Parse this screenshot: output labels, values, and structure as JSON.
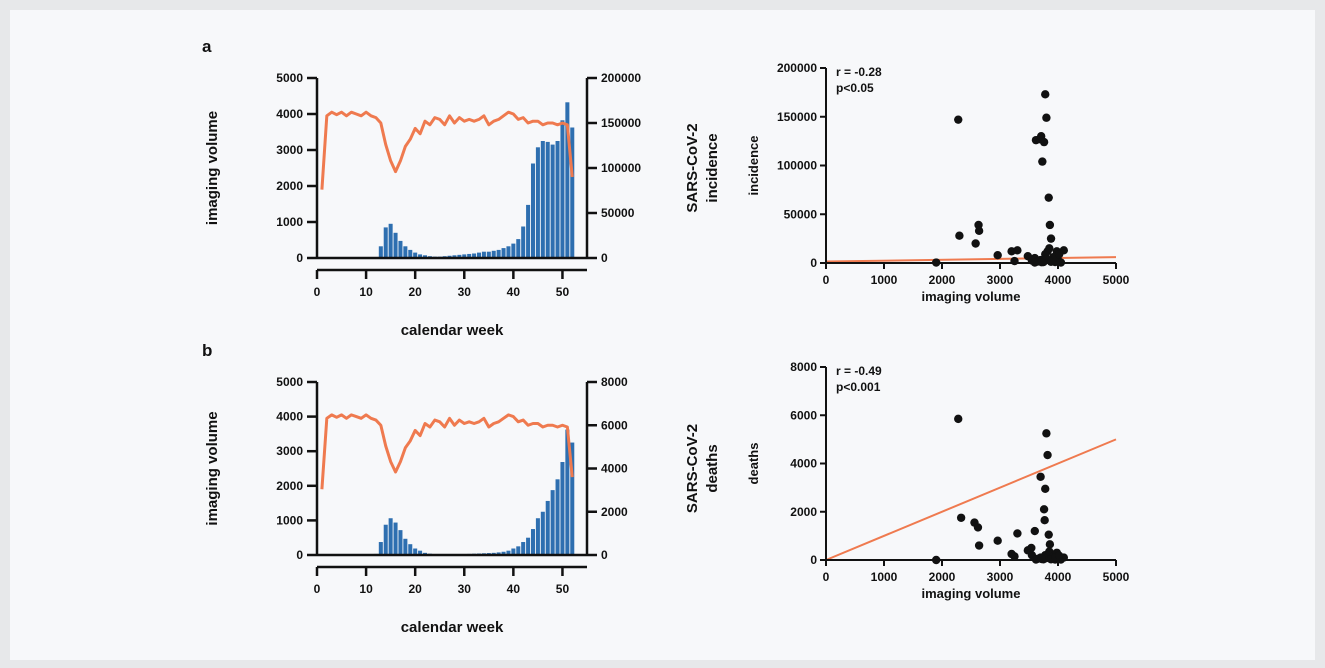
{
  "figure": {
    "panel_a_label": "a",
    "panel_b_label": "b"
  },
  "colors": {
    "bar": "#2e6fb0",
    "line": "#ef7a4f",
    "point": "#111111",
    "axis": "#111111",
    "background": "#f7f8fa"
  },
  "chart_data": [
    {
      "id": "a-left",
      "type": "bar+line",
      "xlabel": "calendar week",
      "ylabel": "imaging volume",
      "ylabel2": [
        "SARS-CoV-2",
        "incidence"
      ],
      "xticks": [
        0,
        10,
        20,
        30,
        40,
        50
      ],
      "yticks": [
        0,
        1000,
        2000,
        3000,
        4000,
        5000
      ],
      "y2ticks": [
        0,
        50000,
        100000,
        150000,
        200000
      ],
      "xlim": [
        0,
        55
      ],
      "ylim": [
        0,
        5000
      ],
      "y2lim": [
        0,
        200000
      ],
      "line_series": {
        "axis": "left",
        "x": [
          1,
          2,
          3,
          4,
          5,
          6,
          7,
          8,
          9,
          10,
          11,
          12,
          13,
          14,
          15,
          16,
          17,
          18,
          19,
          20,
          21,
          22,
          23,
          24,
          25,
          26,
          27,
          28,
          29,
          30,
          31,
          32,
          33,
          34,
          35,
          36,
          37,
          38,
          39,
          40,
          41,
          42,
          43,
          44,
          45,
          46,
          47,
          48,
          49,
          50,
          51,
          52
        ],
        "values": [
          1900,
          3950,
          4050,
          3980,
          4050,
          3950,
          4050,
          4000,
          3950,
          4050,
          3950,
          3900,
          3750,
          3150,
          2700,
          2400,
          2700,
          3100,
          3300,
          3600,
          3450,
          3800,
          3700,
          3900,
          3850,
          3700,
          3950,
          3750,
          3900,
          3800,
          3850,
          3800,
          3850,
          3950,
          3700,
          3800,
          3850,
          3950,
          4050,
          4000,
          3850,
          3900,
          3750,
          3800,
          3800,
          3700,
          3750,
          3750,
          3700,
          3750,
          3700,
          2250
        ]
      },
      "bar_series": {
        "axis": "right",
        "x": [
          1,
          2,
          3,
          4,
          5,
          6,
          7,
          8,
          9,
          10,
          11,
          12,
          13,
          14,
          15,
          16,
          17,
          18,
          19,
          20,
          21,
          22,
          23,
          24,
          25,
          26,
          27,
          28,
          29,
          30,
          31,
          32,
          33,
          34,
          35,
          36,
          37,
          38,
          39,
          40,
          41,
          42,
          43,
          44,
          45,
          46,
          47,
          48,
          49,
          50,
          51,
          52,
          53
        ],
        "values": [
          0,
          0,
          0,
          0,
          0,
          0,
          0,
          0,
          0,
          0,
          0,
          1000,
          13000,
          34000,
          38000,
          28000,
          19000,
          13000,
          9000,
          6000,
          4000,
          3000,
          2000,
          1500,
          1500,
          2000,
          2500,
          3000,
          3500,
          4000,
          4500,
          5000,
          6000,
          7000,
          7000,
          8000,
          9000,
          11000,
          13000,
          16000,
          21000,
          35000,
          59000,
          105000,
          123000,
          130000,
          129000,
          126000,
          130000,
          153000,
          173000,
          145000,
          0
        ]
      }
    },
    {
      "id": "a-right",
      "type": "scatter",
      "xlabel": "imaging volume",
      "ylabel": "incidence",
      "xticks": [
        0,
        1000,
        2000,
        3000,
        4000,
        5000
      ],
      "yticks": [
        0,
        50000,
        100000,
        150000,
        200000
      ],
      "xlim": [
        0,
        5000
      ],
      "ylim": [
        0,
        200000
      ],
      "stats": [
        "r = -0.28",
        "p<0.05"
      ],
      "fit": {
        "x": [
          0,
          5000
        ],
        "y": [
          1500,
          6000
        ]
      },
      "points": [
        [
          1900,
          500
        ],
        [
          2280,
          147000
        ],
        [
          2300,
          28000
        ],
        [
          2580,
          20000
        ],
        [
          2630,
          39000
        ],
        [
          2640,
          33000
        ],
        [
          2960,
          8000
        ],
        [
          3200,
          12000
        ],
        [
          3250,
          2000
        ],
        [
          3300,
          13000
        ],
        [
          3480,
          7000
        ],
        [
          3600,
          5000
        ],
        [
          3620,
          126000
        ],
        [
          3680,
          127000
        ],
        [
          3710,
          130000
        ],
        [
          3730,
          104000
        ],
        [
          3760,
          124000
        ],
        [
          3780,
          173000
        ],
        [
          3800,
          149000
        ],
        [
          3820,
          12000
        ],
        [
          3840,
          67000
        ],
        [
          3860,
          39000
        ],
        [
          3880,
          25000
        ],
        [
          3650,
          1500
        ],
        [
          3700,
          3000
        ],
        [
          3750,
          1000
        ],
        [
          3780,
          9000
        ],
        [
          3800,
          4000
        ],
        [
          3850,
          15000
        ],
        [
          3900,
          2000
        ],
        [
          3920,
          6000
        ],
        [
          3950,
          1000
        ],
        [
          3980,
          12000
        ],
        [
          4000,
          3000
        ],
        [
          4050,
          500
        ],
        [
          4100,
          13000
        ],
        [
          3550,
          2500
        ],
        [
          3600,
          500
        ],
        [
          3720,
          800
        ],
        [
          3880,
          1200
        ],
        [
          3960,
          7000
        ],
        [
          4020,
          9000
        ]
      ]
    },
    {
      "id": "b-left",
      "type": "bar+line",
      "xlabel": "calendar week",
      "ylabel": "imaging volume",
      "ylabel2": [
        "SARS-CoV-2",
        "deaths"
      ],
      "xticks": [
        0,
        10,
        20,
        30,
        40,
        50
      ],
      "yticks": [
        0,
        1000,
        2000,
        3000,
        4000,
        5000
      ],
      "y2ticks": [
        0,
        2000,
        4000,
        6000,
        8000
      ],
      "xlim": [
        0,
        55
      ],
      "ylim": [
        0,
        5000
      ],
      "y2lim": [
        0,
        8000
      ],
      "line_series": {
        "axis": "left",
        "x": [
          1,
          2,
          3,
          4,
          5,
          6,
          7,
          8,
          9,
          10,
          11,
          12,
          13,
          14,
          15,
          16,
          17,
          18,
          19,
          20,
          21,
          22,
          23,
          24,
          25,
          26,
          27,
          28,
          29,
          30,
          31,
          32,
          33,
          34,
          35,
          36,
          37,
          38,
          39,
          40,
          41,
          42,
          43,
          44,
          45,
          46,
          47,
          48,
          49,
          50,
          51,
          52
        ],
        "values": [
          1900,
          3950,
          4050,
          3980,
          4050,
          3950,
          4050,
          4000,
          3950,
          4050,
          3950,
          3900,
          3750,
          3150,
          2700,
          2400,
          2700,
          3100,
          3300,
          3600,
          3450,
          3800,
          3700,
          3900,
          3850,
          3700,
          3950,
          3750,
          3900,
          3800,
          3850,
          3800,
          3850,
          3950,
          3700,
          3800,
          3850,
          3950,
          4050,
          4000,
          3850,
          3900,
          3750,
          3800,
          3800,
          3700,
          3750,
          3750,
          3700,
          3750,
          3700,
          2250
        ]
      },
      "bar_series": {
        "axis": "right",
        "x": [
          1,
          2,
          3,
          4,
          5,
          6,
          7,
          8,
          9,
          10,
          11,
          12,
          13,
          14,
          15,
          16,
          17,
          18,
          19,
          20,
          21,
          22,
          23,
          24,
          25,
          26,
          27,
          28,
          29,
          30,
          31,
          32,
          33,
          34,
          35,
          36,
          37,
          38,
          39,
          40,
          41,
          42,
          43,
          44,
          45,
          46,
          47,
          48,
          49,
          50,
          51,
          52,
          53
        ],
        "values": [
          0,
          0,
          0,
          0,
          0,
          0,
          0,
          0,
          0,
          0,
          0,
          50,
          600,
          1400,
          1700,
          1500,
          1150,
          750,
          500,
          300,
          200,
          100,
          60,
          40,
          30,
          30,
          30,
          30,
          30,
          40,
          50,
          60,
          70,
          80,
          90,
          100,
          120,
          150,
          200,
          300,
          400,
          600,
          800,
          1200,
          1700,
          2000,
          2500,
          3000,
          3500,
          4300,
          5800,
          5200,
          0
        ]
      }
    },
    {
      "id": "b-right",
      "type": "scatter",
      "xlabel": "imaging volume",
      "ylabel": "deaths",
      "xticks": [
        0,
        1000,
        2000,
        3000,
        4000,
        5000
      ],
      "yticks": [
        0,
        2000,
        4000,
        6000,
        8000
      ],
      "xlim": [
        0,
        5000
      ],
      "ylim": [
        0,
        8000
      ],
      "stats": [
        "r = -0.49",
        "p<0.001"
      ],
      "fit": {
        "x": [
          0,
          5000
        ],
        "y": [
          0,
          5000
        ]
      },
      "points": [
        [
          1900,
          0
        ],
        [
          2280,
          5850
        ],
        [
          2330,
          1750
        ],
        [
          2560,
          1550
        ],
        [
          2620,
          1350
        ],
        [
          2640,
          600
        ],
        [
          2960,
          800
        ],
        [
          3200,
          250
        ],
        [
          3250,
          150
        ],
        [
          3300,
          1100
        ],
        [
          3480,
          400
        ],
        [
          3550,
          200
        ],
        [
          3600,
          1200
        ],
        [
          3700,
          3450
        ],
        [
          3760,
          2100
        ],
        [
          3770,
          1650
        ],
        [
          3780,
          2950
        ],
        [
          3800,
          5250
        ],
        [
          3820,
          4350
        ],
        [
          3840,
          1050
        ],
        [
          3860,
          650
        ],
        [
          3880,
          250
        ],
        [
          3650,
          50
        ],
        [
          3700,
          100
        ],
        [
          3750,
          30
        ],
        [
          3780,
          200
        ],
        [
          3800,
          80
        ],
        [
          3850,
          350
        ],
        [
          3900,
          50
        ],
        [
          3920,
          150
        ],
        [
          3950,
          20
        ],
        [
          3980,
          300
        ],
        [
          4000,
          60
        ],
        [
          4050,
          20
        ],
        [
          4100,
          100
        ],
        [
          3540,
          500
        ],
        [
          3620,
          20
        ],
        [
          3720,
          40
        ],
        [
          3880,
          30
        ],
        [
          3960,
          120
        ],
        [
          4020,
          180
        ]
      ]
    }
  ]
}
